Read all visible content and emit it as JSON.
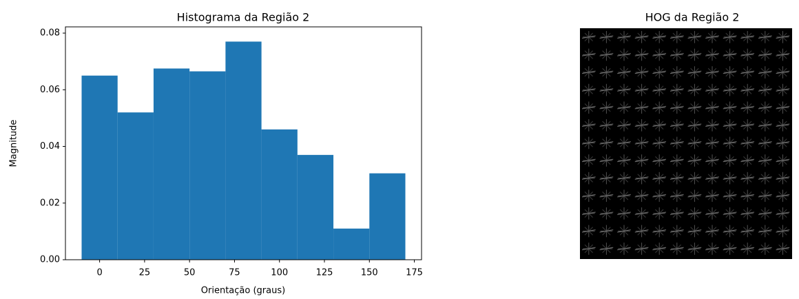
{
  "chart_data": [
    {
      "type": "histogram",
      "title": "Histograma da Região 2",
      "xlabel": "Orientação (graus)",
      "ylabel": "Magnitude",
      "bins": [
        -10,
        10,
        30,
        50,
        70,
        90,
        110,
        130,
        150,
        170
      ],
      "values": [
        0.065,
        0.052,
        0.0675,
        0.0665,
        0.077,
        0.046,
        0.037,
        0.011,
        0.0305
      ],
      "color": "#1f77b4",
      "xlim": [
        -19,
        179
      ],
      "xticks": [
        0,
        25,
        50,
        75,
        100,
        125,
        150,
        175
      ],
      "ylim": [
        0,
        0.0822
      ],
      "yticks": [
        {
          "value": 0,
          "label": "0.00"
        },
        {
          "value": 0.02,
          "label": "0.02"
        },
        {
          "value": 0.04,
          "label": "0.04"
        },
        {
          "value": 0.06,
          "label": "0.06"
        },
        {
          "value": 0.08,
          "label": "0.08"
        }
      ]
    },
    {
      "type": "image",
      "title": "HOG da Região 2"
    }
  ]
}
